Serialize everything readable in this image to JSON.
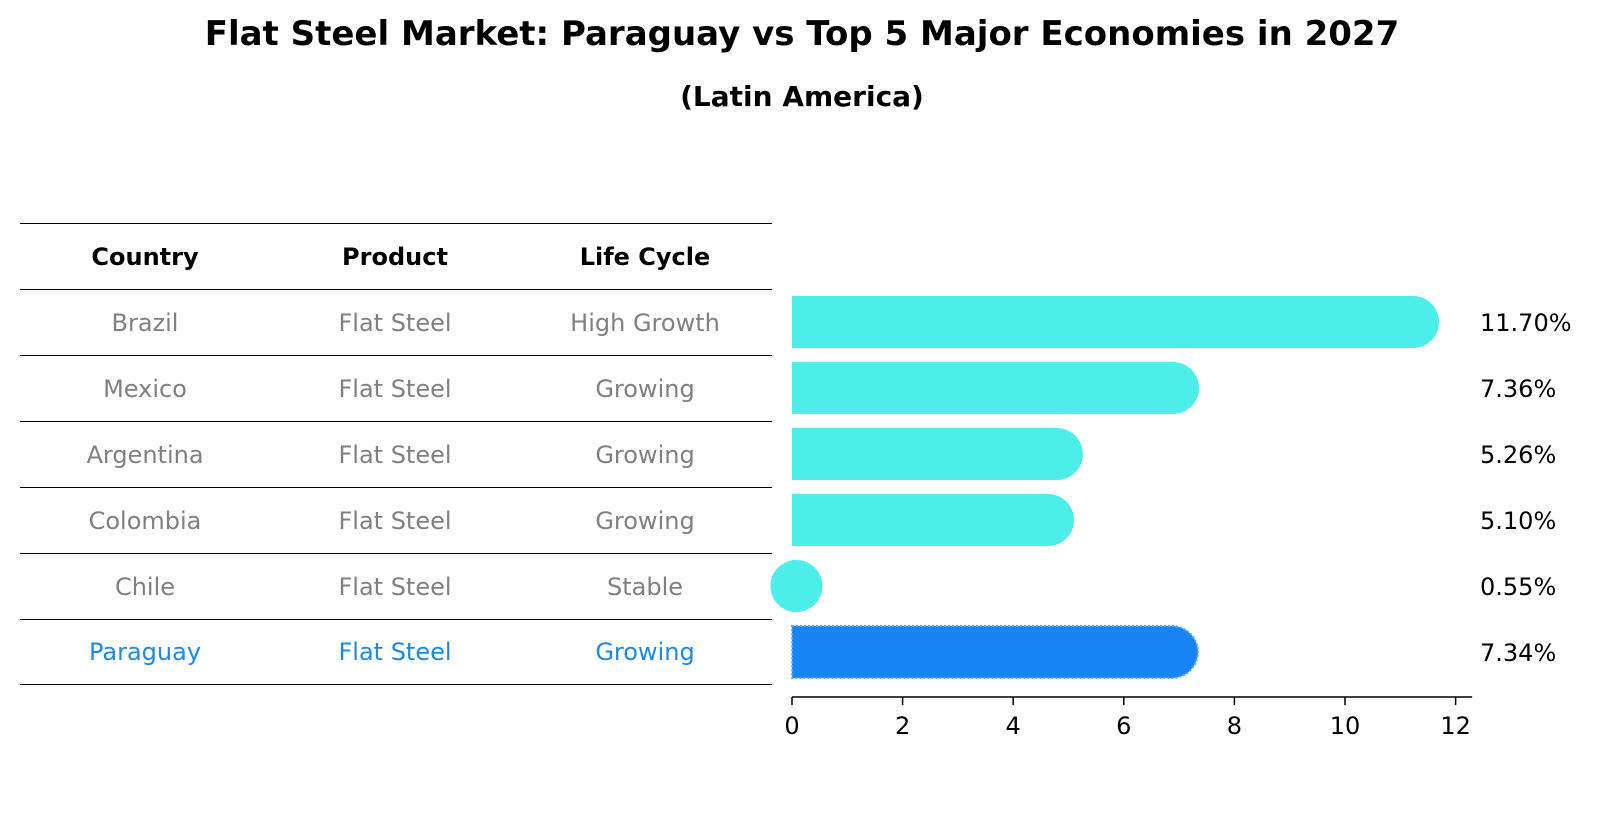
{
  "title": "Flat Steel Market: Paraguay vs Top 5 Major Economies in 2027",
  "subtitle": "(Latin America)",
  "table": {
    "headers": [
      "Country",
      "Product",
      "Life Cycle"
    ],
    "rows": [
      {
        "country": "Brazil",
        "product": "Flat Steel",
        "life_cycle": "High Growth"
      },
      {
        "country": "Mexico",
        "product": "Flat Steel",
        "life_cycle": "Growing"
      },
      {
        "country": "Argentina",
        "product": "Flat Steel",
        "life_cycle": "Growing"
      },
      {
        "country": "Colombia",
        "product": "Flat Steel",
        "life_cycle": "Growing"
      },
      {
        "country": "Chile",
        "product": "Flat Steel",
        "life_cycle": "Stable"
      },
      {
        "country": "Paraguay",
        "product": "Flat Steel",
        "life_cycle": "Growing"
      }
    ]
  },
  "colors": {
    "bar": "#4deeea",
    "highlight_bar": "#1984f5",
    "highlight_text": "#1e88e5",
    "muted_text": "#808080"
  },
  "chart_data": {
    "type": "bar",
    "orientation": "horizontal",
    "categories": [
      "Brazil",
      "Mexico",
      "Argentina",
      "Colombia",
      "Chile",
      "Paraguay"
    ],
    "values": [
      11.7,
      7.36,
      5.26,
      5.1,
      0.55,
      7.34
    ],
    "value_labels": [
      "11.70%",
      "7.36%",
      "5.26%",
      "5.10%",
      "0.55%",
      "7.34%"
    ],
    "highlight": "Paraguay",
    "xlim": [
      0,
      12.3
    ],
    "xticks": [
      0,
      2,
      4,
      6,
      8,
      10,
      12
    ],
    "xlabel": "",
    "ylabel": "",
    "grid": false
  }
}
